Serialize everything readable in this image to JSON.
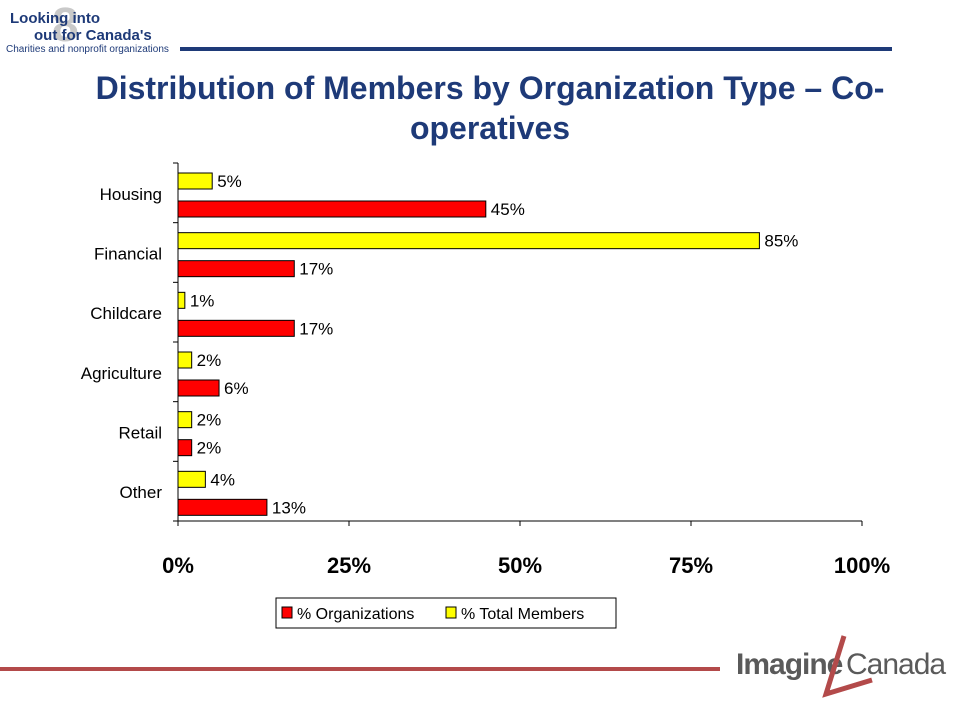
{
  "header": {
    "logo_line1": "Looking into",
    "logo_line2": "out for Canada's",
    "logo_line3": "Charities and nonprofit organizations",
    "logo_numeral": "8"
  },
  "footer": {
    "logo_part1": "Imagine",
    "logo_part2": "Canada"
  },
  "colors": {
    "organizations": "#ff0000",
    "members": "#ffff00",
    "title": "#1e3a78",
    "rule_bottom": "#b34a4a"
  },
  "chart_data": {
    "type": "bar",
    "orientation": "horizontal",
    "title": "Distribution of Members by Organization Type – Co-operatives",
    "categories": [
      "Housing",
      "Financial",
      "Childcare",
      "Agriculture",
      "Retail",
      "Other"
    ],
    "series": [
      {
        "name": "% Total Members",
        "values": [
          5,
          85,
          1,
          2,
          2,
          4
        ],
        "labels": [
          "5%",
          "85%",
          "1%",
          "2%",
          "2%",
          "4%"
        ],
        "color": "#ffff00"
      },
      {
        "name": "% Organizations",
        "values": [
          45,
          17,
          17,
          6,
          2,
          13
        ],
        "labels": [
          "45%",
          "17%",
          "17%",
          "6%",
          "2%",
          "13%"
        ],
        "color": "#ff0000"
      }
    ],
    "xlim": [
      0,
      100
    ],
    "xticks": [
      0,
      25,
      50,
      75,
      100
    ],
    "xtick_labels": [
      "0%",
      "25%",
      "50%",
      "75%",
      "100%"
    ],
    "legend": {
      "position": "bottom",
      "items": [
        "% Organizations",
        "% Total Members"
      ]
    },
    "grid": false
  }
}
